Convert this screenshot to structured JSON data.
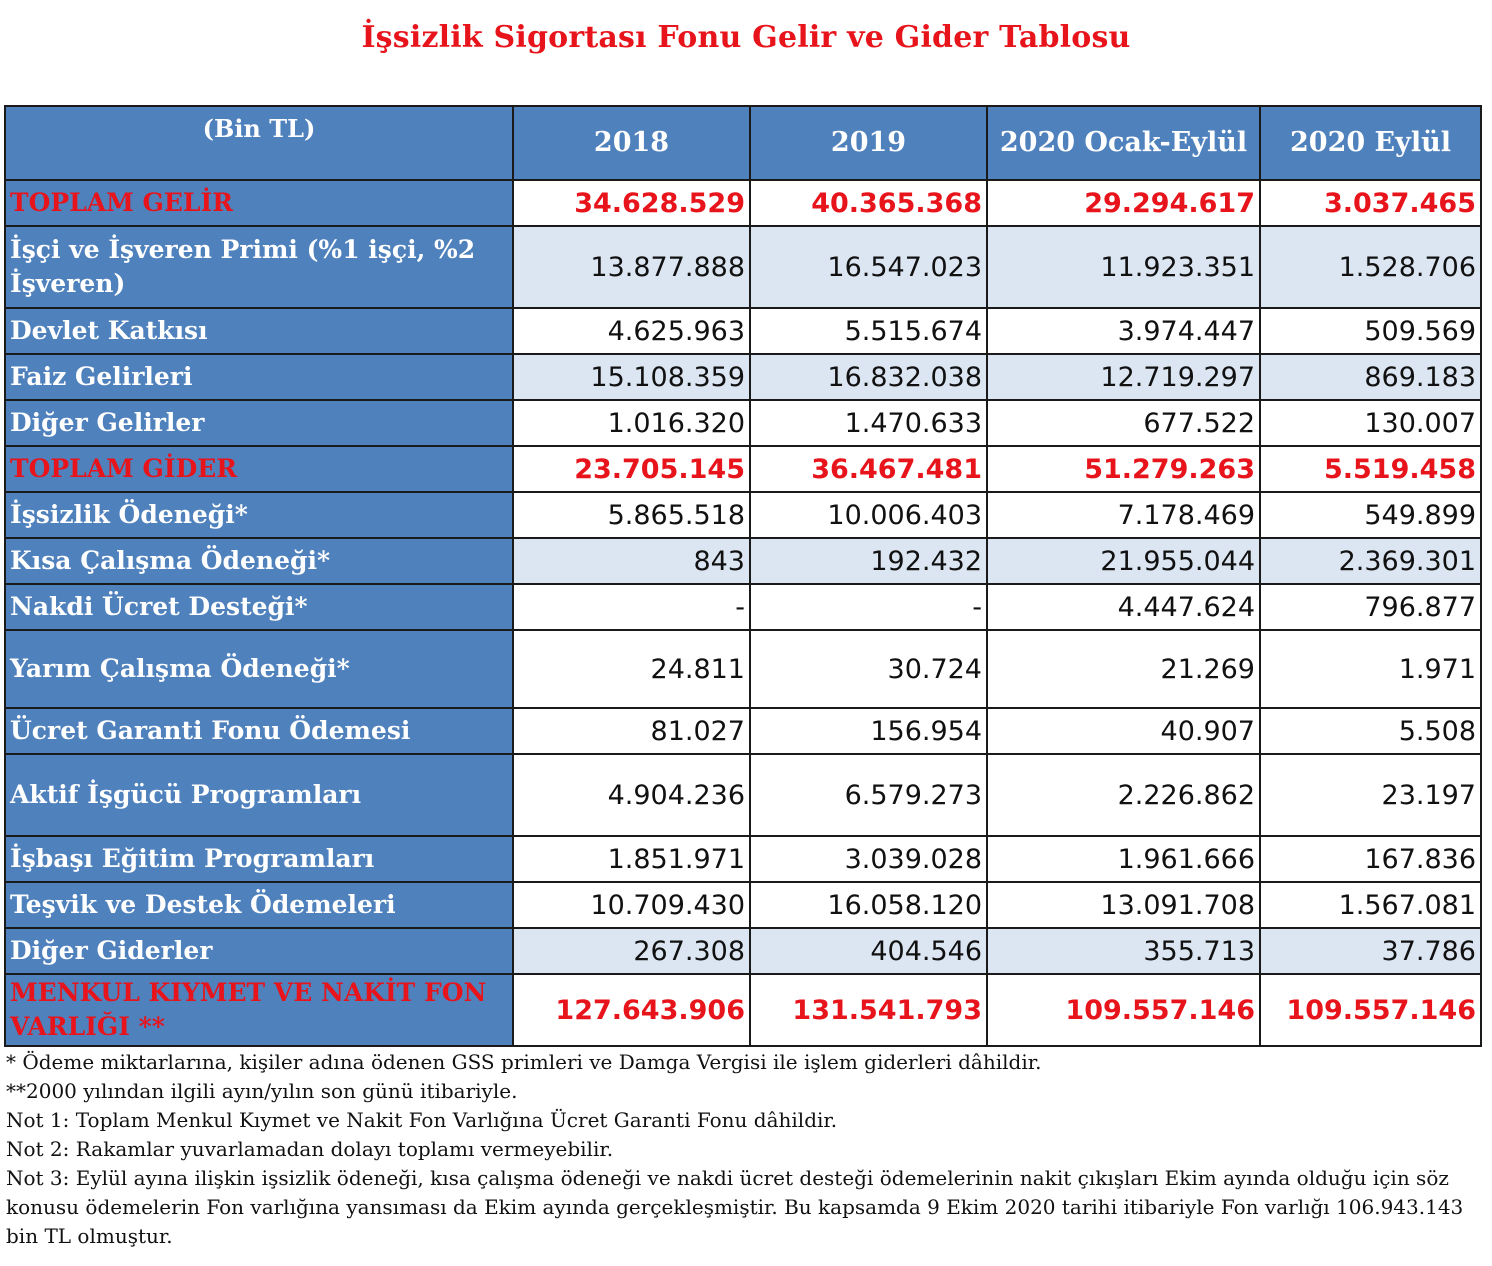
{
  "title": "İşsizlik Sigortası Fonu Gelir ve Gider Tablosu",
  "table": {
    "columns": [
      "(Bin TL)",
      "2018",
      "2019",
      "2020 Ocak-Eylül",
      "2020 Eylül"
    ],
    "rows": [
      {
        "label": "TOPLAM GELİR",
        "values": [
          "34.628.529",
          "40.365.368",
          "29.294.617",
          "3.037.465"
        ]
      },
      {
        "label": "İşçi ve İşveren Primi (%1 işçi, %2 İşveren)",
        "values": [
          "13.877.888",
          "16.547.023",
          "11.923.351",
          "1.528.706"
        ]
      },
      {
        "label": "Devlet Katkısı",
        "values": [
          "4.625.963",
          "5.515.674",
          "3.974.447",
          "509.569"
        ]
      },
      {
        "label": "Faiz Gelirleri",
        "values": [
          "15.108.359",
          "16.832.038",
          "12.719.297",
          "869.183"
        ]
      },
      {
        "label": "Diğer Gelirler",
        "values": [
          "1.016.320",
          "1.470.633",
          "677.522",
          "130.007"
        ]
      },
      {
        "label": "TOPLAM GİDER",
        "values": [
          "23.705.145",
          "36.467.481",
          "51.279.263",
          "5.519.458"
        ]
      },
      {
        "label": "İşsizlik Ödeneği*",
        "values": [
          "5.865.518",
          "10.006.403",
          "7.178.469",
          "549.899"
        ]
      },
      {
        "label": "Kısa Çalışma Ödeneği*",
        "values": [
          "843",
          "192.432",
          "21.955.044",
          "2.369.301"
        ]
      },
      {
        "label": "Nakdi Ücret Desteği*",
        "values": [
          "-",
          "-",
          "4.447.624",
          "796.877"
        ]
      },
      {
        "label": "Yarım Çalışma Ödeneği*",
        "values": [
          "24.811",
          "30.724",
          "21.269",
          "1.971"
        ]
      },
      {
        "label": "Ücret Garanti Fonu Ödemesi",
        "values": [
          "81.027",
          "156.954",
          "40.907",
          "5.508"
        ]
      },
      {
        "label": "Aktif İşgücü Programları",
        "values": [
          "4.904.236",
          "6.579.273",
          "2.226.862",
          "23.197"
        ]
      },
      {
        "label": "İşbaşı Eğitim Programları",
        "values": [
          "1.851.971",
          "3.039.028",
          "1.961.666",
          "167.836"
        ]
      },
      {
        "label": "Teşvik ve Destek Ödemeleri",
        "values": [
          "10.709.430",
          "16.058.120",
          "13.091.708",
          "1.567.081"
        ]
      },
      {
        "label": "Diğer Giderler",
        "values": [
          "267.308",
          "404.546",
          "355.713",
          "37.786"
        ]
      },
      {
        "label": "MENKUL KIYMET VE NAKİT FON VARLIĞI **",
        "values": [
          "127.643.906",
          "131.541.793",
          "109.557.146",
          "109.557.146"
        ]
      }
    ]
  },
  "notes": [
    "* Ödeme miktarlarına, kişiler adına ödenen GSS primleri ve Damga Vergisi ile işlem giderleri dâhildir.",
    "**2000 yılından ilgili ayın/yılın son günü itibariyle.",
    "Not 1: Toplam Menkul Kıymet ve Nakit Fon Varlığına Ücret Garanti Fonu dâhildir.",
    "Not 2: Rakamlar yuvarlamadan dolayı toplamı vermeyebilir.",
    "Not 3: Eylül ayına ilişkin işsizlik ödeneği, kısa çalışma ödeneği ve nakdi ücret desteği ödemelerinin nakit çıkışları Ekim ayında olduğu için söz konusu ödemelerin Fon varlığına yansıması da Ekim ayında gerçekleşmiştir. Bu kapsamda 9 Ekim 2020 tarihi itibariyle Fon varlığı 106.943.143 bin TL olmuştur."
  ]
}
